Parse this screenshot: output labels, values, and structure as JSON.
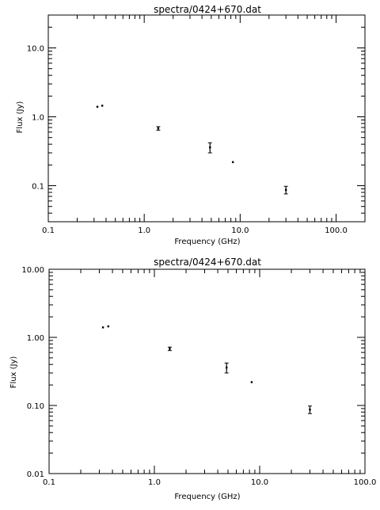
{
  "chart_data": [
    {
      "type": "scatter",
      "title": "spectra/0424+670.dat",
      "xlabel": "Frequency (GHz)",
      "ylabel": "Flux (Jy)",
      "xscale": "log",
      "yscale": "log",
      "xlim": [
        0.1,
        200
      ],
      "ylim": [
        0.03,
        30
      ],
      "x_ticks": [
        {
          "v": 0.1,
          "label": "0.1"
        },
        {
          "v": 1,
          "label": "1.0"
        },
        {
          "v": 10,
          "label": "10.0"
        },
        {
          "v": 100,
          "label": "100.0"
        }
      ],
      "y_ticks": [
        {
          "v": 0.1,
          "label": "0.1"
        },
        {
          "v": 1,
          "label": "1.0"
        },
        {
          "v": 10,
          "label": "10.0"
        }
      ],
      "points": [
        {
          "x": 0.325,
          "y": 1.4,
          "err": 0
        },
        {
          "x": 0.365,
          "y": 1.45,
          "err": 0
        },
        {
          "x": 1.4,
          "y": 0.68,
          "err": 0.04
        },
        {
          "x": 4.85,
          "y": 0.36,
          "err": 0.06
        },
        {
          "x": 8.4,
          "y": 0.22,
          "err": 0
        },
        {
          "x": 30,
          "y": 0.087,
          "err": 0.011
        }
      ]
    },
    {
      "type": "scatter",
      "title": "spectra/0424+670.dat",
      "xlabel": "Frequency (GHz)",
      "ylabel": "Flux (Jy)",
      "xscale": "log",
      "yscale": "log",
      "xlim": [
        0.1,
        100
      ],
      "ylim": [
        0.01,
        10
      ],
      "x_ticks": [
        {
          "v": 0.1,
          "label": "0.1"
        },
        {
          "v": 1,
          "label": "1.0"
        },
        {
          "v": 10,
          "label": "10.0"
        },
        {
          "v": 100,
          "label": "100.0"
        }
      ],
      "y_ticks": [
        {
          "v": 0.01,
          "label": "0.01"
        },
        {
          "v": 0.1,
          "label": "0.10"
        },
        {
          "v": 1,
          "label": "1.00"
        },
        {
          "v": 10,
          "label": "10.00"
        }
      ],
      "points": [
        {
          "x": 0.325,
          "y": 1.4,
          "err": 0
        },
        {
          "x": 0.365,
          "y": 1.45,
          "err": 0
        },
        {
          "x": 1.4,
          "y": 0.68,
          "err": 0.04
        },
        {
          "x": 4.85,
          "y": 0.36,
          "err": 0.06
        },
        {
          "x": 8.4,
          "y": 0.22,
          "err": 0
        },
        {
          "x": 30,
          "y": 0.087,
          "err": 0.011
        }
      ]
    }
  ]
}
